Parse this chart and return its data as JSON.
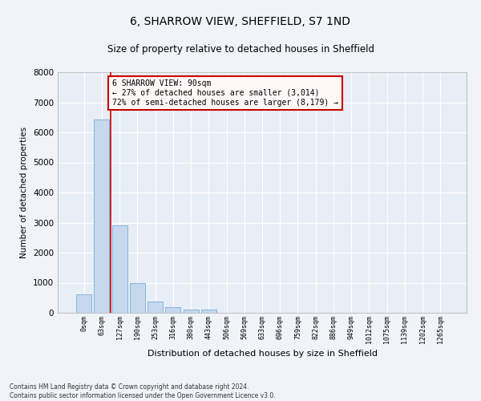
{
  "title": "6, SHARROW VIEW, SHEFFIELD, S7 1ND",
  "subtitle": "Size of property relative to detached houses in Sheffield",
  "xlabel": "Distribution of detached houses by size in Sheffield",
  "ylabel": "Number of detached properties",
  "bar_color": "#c5d8ee",
  "bar_edge_color": "#7aaed4",
  "background_color": "#e8eef5",
  "grid_color": "#ffffff",
  "fig_background": "#f0f4f8",
  "categories": [
    "0sqm",
    "63sqm",
    "127sqm",
    "190sqm",
    "253sqm",
    "316sqm",
    "380sqm",
    "443sqm",
    "506sqm",
    "569sqm",
    "633sqm",
    "696sqm",
    "759sqm",
    "822sqm",
    "886sqm",
    "949sqm",
    "1012sqm",
    "1075sqm",
    "1139sqm",
    "1202sqm",
    "1265sqm"
  ],
  "values": [
    620,
    6420,
    2920,
    990,
    380,
    175,
    110,
    95,
    0,
    0,
    0,
    0,
    0,
    0,
    0,
    0,
    0,
    0,
    0,
    0,
    0
  ],
  "vline_x": 1.5,
  "vline_color": "#cc0000",
  "annotation_border_color": "#cc0000",
  "annotation_face_color": "#fff8f8",
  "annotation_text_line1": "6 SHARROW VIEW: 90sqm",
  "annotation_text_line2": "← 27% of detached houses are smaller (3,014)",
  "annotation_text_line3": "72% of semi-detached houses are larger (8,179) →",
  "footer_line1": "Contains HM Land Registry data © Crown copyright and database right 2024.",
  "footer_line2": "Contains public sector information licensed under the Open Government Licence v3.0.",
  "ylim": [
    0,
    8000
  ],
  "yticks": [
    0,
    1000,
    2000,
    3000,
    4000,
    5000,
    6000,
    7000,
    8000
  ]
}
